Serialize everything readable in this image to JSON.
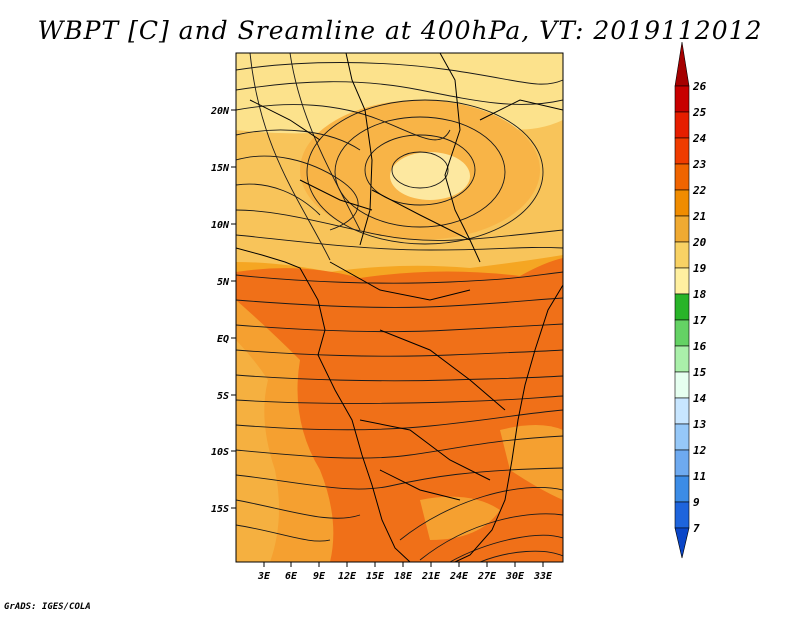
{
  "title": "WBPT [C] and Sreamline at 400hPa, VT: 2019112012",
  "credit": "GrADS: IGES/COLA",
  "map": {
    "lat_labels": [
      "20N",
      "15N",
      "10N",
      "5N",
      "EQ",
      "5S",
      "10S",
      "15S"
    ],
    "lon_labels": [
      "3E",
      "6E",
      "9E",
      "12E",
      "15E",
      "18E",
      "21E",
      "24E",
      "27E",
      "30E",
      "33E"
    ]
  },
  "colorbar": {
    "labels": [
      "26",
      "25",
      "24",
      "23",
      "22",
      "21",
      "20",
      "19",
      "18",
      "17",
      "16",
      "15",
      "14",
      "13",
      "12",
      "11",
      "9",
      "7"
    ],
    "colors": [
      "#a50000",
      "#c80000",
      "#e61e00",
      "#f03c00",
      "#f06400",
      "#f08c00",
      "#f0aa32",
      "#f8d264",
      "#fff0a0",
      "#28b428",
      "#64d264",
      "#aaf0aa",
      "#e6fff0",
      "#c8e6ff",
      "#96c8f8",
      "#6eaaf0",
      "#3c8ce6",
      "#1e64dc",
      "#0a46c8"
    ]
  }
}
